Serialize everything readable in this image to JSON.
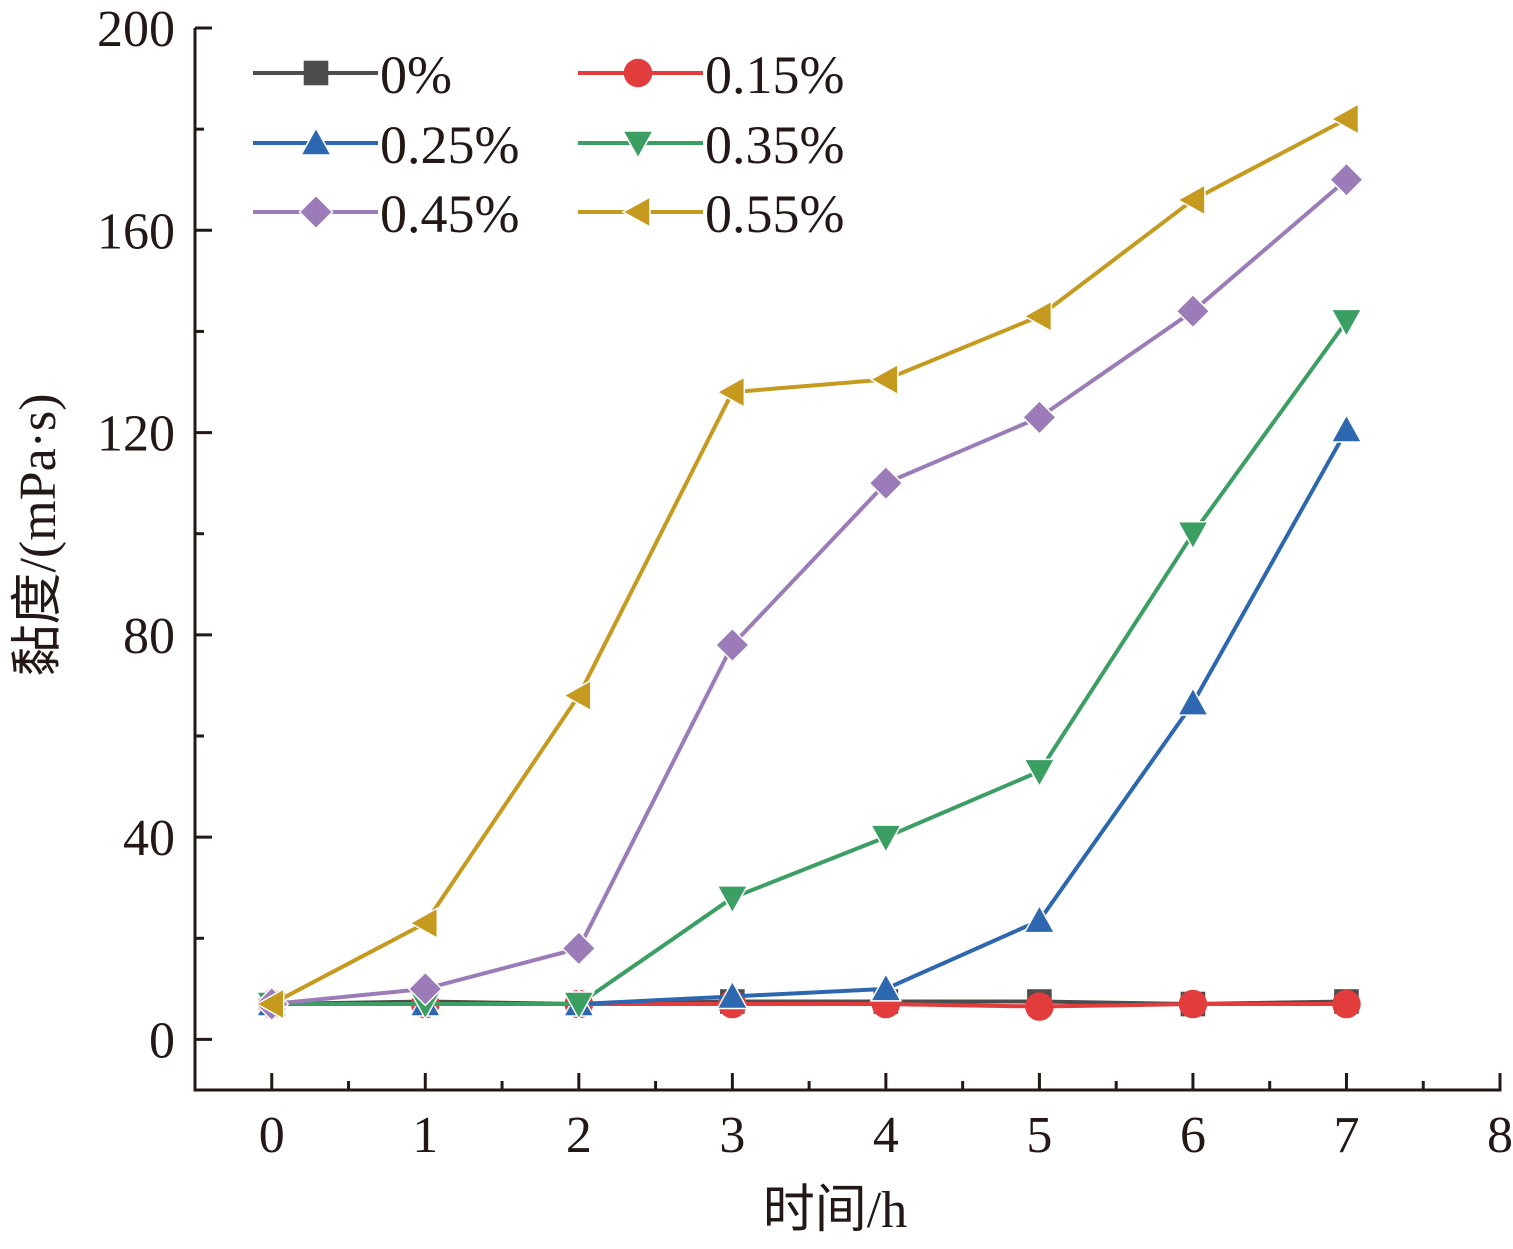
{
  "chart_data": {
    "type": "line",
    "xlabel": "时间/h",
    "ylabel": "黏度/(mPa·s)",
    "xlim": [
      -0.5,
      8
    ],
    "ylim": [
      -10,
      200
    ],
    "x_ticks": [
      0,
      1,
      2,
      3,
      4,
      5,
      6,
      7,
      8
    ],
    "x_tick_labels": [
      "0",
      "1",
      "2",
      "3",
      "4",
      "5",
      "6",
      "7",
      "8"
    ],
    "y_ticks": [
      0,
      40,
      80,
      120,
      160,
      200
    ],
    "y_tick_labels": [
      "0",
      "40",
      "80",
      "120",
      "160",
      "200"
    ],
    "grid": false,
    "legend_position": "top-left",
    "x": [
      0,
      1,
      2,
      3,
      4,
      5,
      6,
      7
    ],
    "series": [
      {
        "name": "0%",
        "color": "#4d4d4d",
        "marker": "square",
        "values": [
          7,
          7.5,
          7,
          7.5,
          7.5,
          7.5,
          7,
          7.5
        ]
      },
      {
        "name": "0.15%",
        "color": "#e23c3c",
        "marker": "circle",
        "values": [
          7,
          7,
          7,
          7,
          7,
          6.5,
          7,
          7
        ]
      },
      {
        "name": "0.25%",
        "color": "#2c67b0",
        "marker": "triangle-up",
        "values": [
          7,
          7,
          7,
          8.5,
          10,
          23.5,
          66.5,
          120.5
        ]
      },
      {
        "name": "0.35%",
        "color": "#3b9e62",
        "marker": "triangle-down",
        "values": [
          7,
          7,
          7,
          28,
          40,
          53,
          100,
          142
        ]
      },
      {
        "name": "0.45%",
        "color": "#9b7bb8",
        "marker": "diamond",
        "values": [
          7,
          10,
          18,
          78,
          110,
          123,
          144,
          170
        ]
      },
      {
        "name": "0.55%",
        "color": "#c69a1f",
        "marker": "triangle-left",
        "values": [
          7,
          23,
          68,
          128,
          130.5,
          143,
          166,
          182
        ]
      }
    ]
  }
}
